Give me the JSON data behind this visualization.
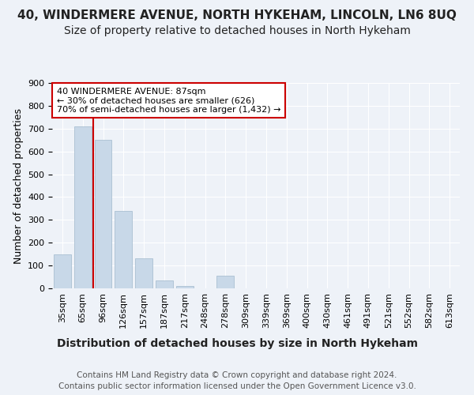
{
  "title": "40, WINDERMERE AVENUE, NORTH HYKEHAM, LINCOLN, LN6 8UQ",
  "subtitle": "Size of property relative to detached houses in North Hykeham",
  "xlabel": "Distribution of detached houses by size in North Hykeham",
  "ylabel": "Number of detached properties",
  "footer_line1": "Contains HM Land Registry data © Crown copyright and database right 2024.",
  "footer_line2": "Contains public sector information licensed under the Open Government Licence v3.0.",
  "bin_labels": [
    "35sqm",
    "65sqm",
    "96sqm",
    "126sqm",
    "157sqm",
    "187sqm",
    "217sqm",
    "248sqm",
    "278sqm",
    "309sqm",
    "339sqm",
    "369sqm",
    "400sqm",
    "430sqm",
    "461sqm",
    "491sqm",
    "521sqm",
    "552sqm",
    "582sqm",
    "613sqm"
  ],
  "bar_heights": [
    150,
    710,
    650,
    340,
    130,
    35,
    10,
    0,
    55,
    0,
    0,
    0,
    0,
    0,
    0,
    0,
    0,
    0,
    0,
    0
  ],
  "bar_color": "#c8d8e8",
  "bar_edge_color": "#a0b8cc",
  "red_line_x": 1.5,
  "annotation_text": "40 WINDERMERE AVENUE: 87sqm\n← 30% of detached houses are smaller (626)\n70% of semi-detached houses are larger (1,432) →",
  "annotation_box_color": "#ffffff",
  "annotation_box_edge": "#cc0000",
  "ylim": [
    0,
    900
  ],
  "yticks": [
    0,
    100,
    200,
    300,
    400,
    500,
    600,
    700,
    800,
    900
  ],
  "background_color": "#eef2f8",
  "plot_bg_color": "#eef2f8",
  "grid_color": "#ffffff",
  "title_fontsize": 11,
  "subtitle_fontsize": 10,
  "xlabel_fontsize": 10,
  "ylabel_fontsize": 9,
  "tick_fontsize": 8,
  "annotation_fontsize": 8,
  "footer_fontsize": 7.5
}
